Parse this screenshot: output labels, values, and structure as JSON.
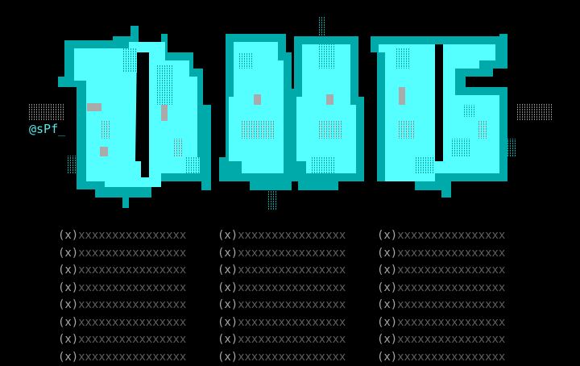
{
  "signature": {
    "text": "@sPf",
    "cursor": "_"
  },
  "colors": {
    "dark_cyan": "#00aaaa",
    "bright_cyan": "#55ffff",
    "gray": "#aaaaaa",
    "dim_gray": "#5e5e5e",
    "background": "#000000"
  },
  "columns": [
    {
      "rows": [
        {
          "marker": "(x)",
          "text": "xxxxxxxxxxxxxxxx"
        },
        {
          "marker": "(x)",
          "text": "xxxxxxxxxxxxxxxx"
        },
        {
          "marker": "(x)",
          "text": "xxxxxxxxxxxxxxxx"
        },
        {
          "marker": "(x)",
          "text": "xxxxxxxxxxxxxxxx"
        },
        {
          "marker": "(x)",
          "text": "xxxxxxxxxxxxxxxx"
        },
        {
          "marker": "(x)",
          "text": "xxxxxxxxxxxxxxxx"
        },
        {
          "marker": "(x)",
          "text": "xxxxxxxxxxxxxxxx"
        },
        {
          "marker": "(x)",
          "text": "xxxxxxxxxxxxxxxx"
        }
      ]
    },
    {
      "rows": [
        {
          "marker": "(x)",
          "text": "xxxxxxxxxxxxxxxx"
        },
        {
          "marker": "(x)",
          "text": "xxxxxxxxxxxxxxxx"
        },
        {
          "marker": "(x)",
          "text": "xxxxxxxxxxxxxxxx"
        },
        {
          "marker": "(x)",
          "text": "xxxxxxxxxxxxxxxx"
        },
        {
          "marker": "(x)",
          "text": "xxxxxxxxxxxxxxxx"
        },
        {
          "marker": "(x)",
          "text": "xxxxxxxxxxxxxxxx"
        },
        {
          "marker": "(x)",
          "text": "xxxxxxxxxxxxxxxx"
        },
        {
          "marker": "(x)",
          "text": "xxxxxxxxxxxxxxxx"
        }
      ]
    },
    {
      "rows": [
        {
          "marker": "(x)",
          "text": "xxxxxxxxxxxxxxxx"
        },
        {
          "marker": "(x)",
          "text": "xxxxxxxxxxxxxxxx"
        },
        {
          "marker": "(x)",
          "text": "xxxxxxxxxxxxxxxx"
        },
        {
          "marker": "(x)",
          "text": "xxxxxxxxxxxxxxxx"
        },
        {
          "marker": "(x)",
          "text": "xxxxxxxxxxxxxxxx"
        },
        {
          "marker": "(x)",
          "text": "xxxxxxxxxxxxxxxx"
        },
        {
          "marker": "(x)",
          "text": "xxxxxxxxxxxxxxxx"
        },
        {
          "marker": "(x)",
          "text": "xxxxxxxxxxxxxxxx"
        }
      ]
    }
  ]
}
